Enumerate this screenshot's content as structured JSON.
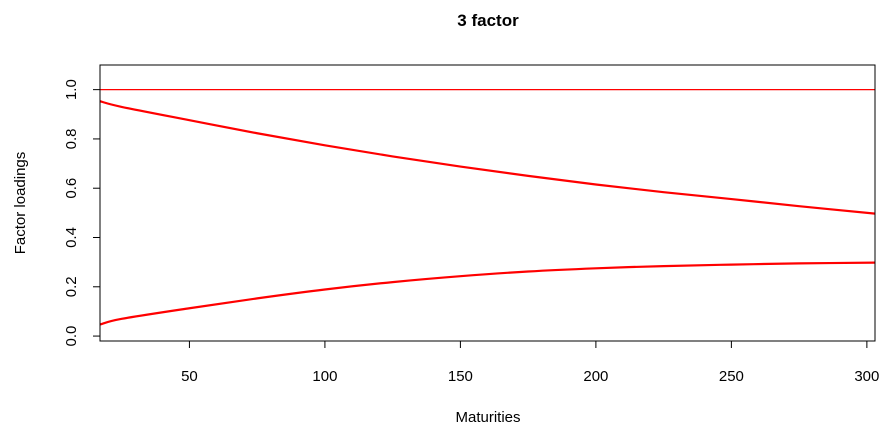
{
  "chart_data": {
    "type": "line",
    "title": "3 factor",
    "xlabel": "Maturities",
    "ylabel": "Factor loadings",
    "xlim": [
      17,
      303
    ],
    "ylim": [
      -0.02,
      1.1
    ],
    "x_ticks": [
      50,
      100,
      150,
      200,
      250,
      300
    ],
    "y_ticks": [
      0.0,
      0.2,
      0.4,
      0.6,
      0.8,
      1.0
    ],
    "x_tick_labels": [
      "50",
      "100",
      "150",
      "200",
      "250",
      "300"
    ],
    "y_tick_labels": [
      "0.0",
      "0.2",
      "0.4",
      "0.6",
      "0.8",
      "1.0"
    ],
    "grid": false,
    "legend": "none",
    "line_color": "#ff0000",
    "x": [
      17,
      25,
      50,
      75,
      100,
      125,
      150,
      175,
      200,
      225,
      250,
      275,
      303
    ],
    "series": [
      {
        "values": [
          1.0,
          1.0,
          1.0,
          1.0,
          1.0,
          1.0,
          1.0,
          1.0,
          1.0,
          1.0,
          1.0,
          1.0,
          1.0
        ]
      },
      {
        "values": [
          0.953,
          0.93,
          0.876,
          0.823,
          0.774,
          0.729,
          0.688,
          0.65,
          0.615,
          0.584,
          0.556,
          0.527,
          0.497
        ]
      },
      {
        "values": [
          0.047,
          0.07,
          0.113,
          0.153,
          0.189,
          0.219,
          0.243,
          0.262,
          0.275,
          0.284,
          0.29,
          0.295,
          0.298
        ]
      }
    ]
  }
}
